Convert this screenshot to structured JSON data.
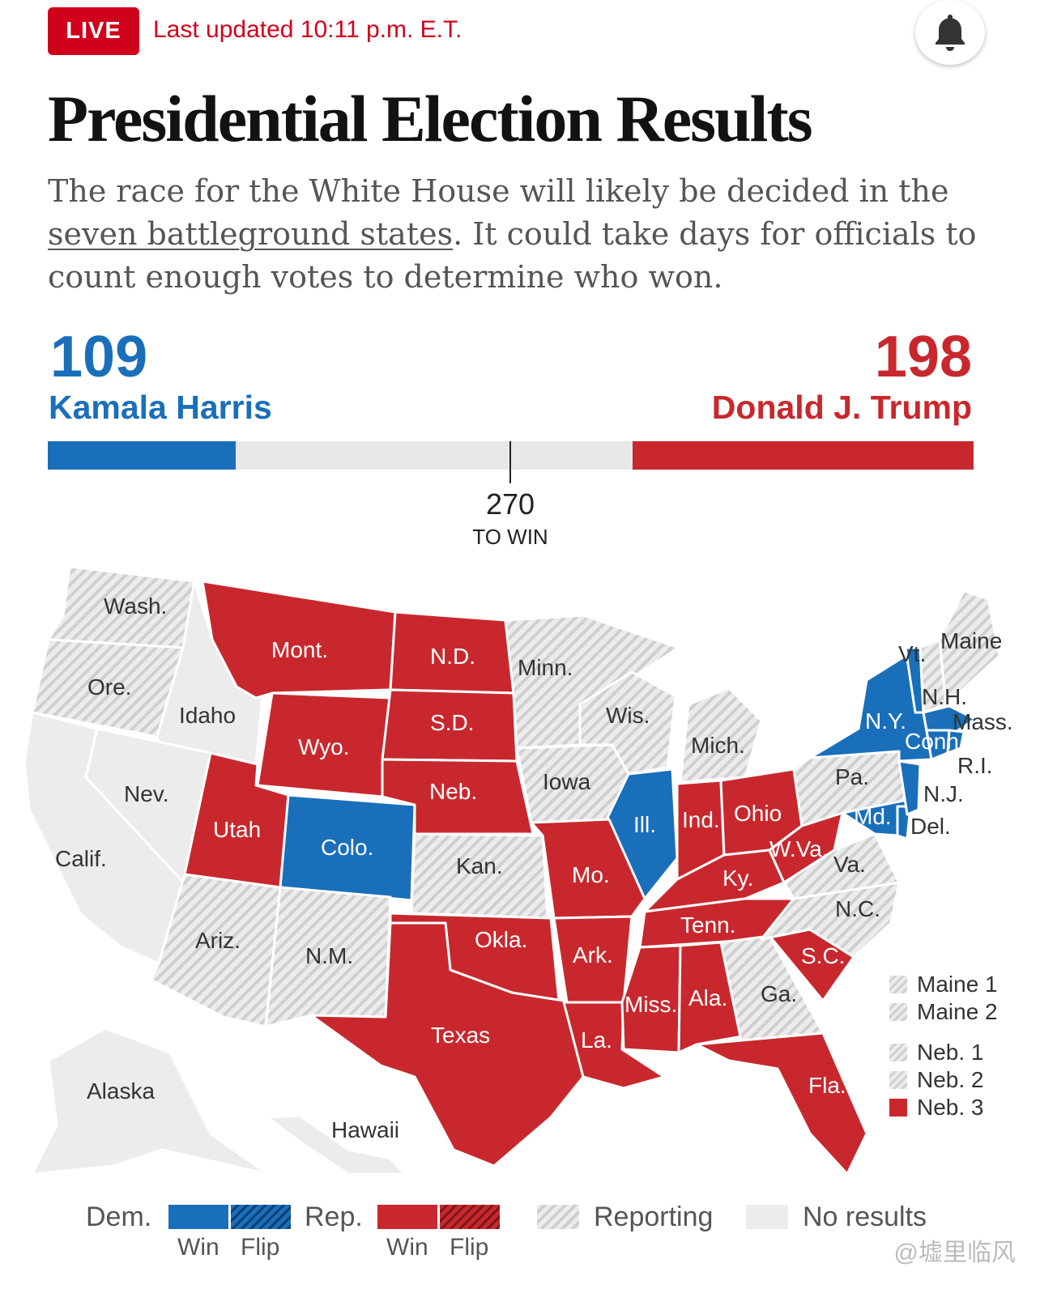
{
  "header": {
    "live_label": "LIVE",
    "updated_text": "Last updated 10:11 p.m. E.T.",
    "bell_icon": "bell-icon"
  },
  "title": "Presidential Election Results",
  "intro": {
    "before": "The race for the White House will likely be decided in the ",
    "link": "seven battleground states",
    "after": ". It could take days for officials to count enough votes to determine who won."
  },
  "scoreboard": {
    "dem": {
      "votes": "109",
      "name": "Kamala Harris",
      "color": "#1a6fba"
    },
    "rep": {
      "votes": "198",
      "name": "Donald J. Trump",
      "color": "#c8282d"
    },
    "threshold": "270",
    "threshold_label": "TO WIN",
    "total": 538
  },
  "map": {
    "colors": {
      "dem": "#1a6fba",
      "rep": "#c8282d",
      "reporting": "#d6d6d6",
      "none": "#ececec"
    },
    "states": {
      "Wash.": "reporting",
      "Ore.": "reporting",
      "Calif.": "none",
      "Idaho": "none",
      "Nev.": "none",
      "Mont.": "rep",
      "Wyo.": "rep",
      "Utah": "rep",
      "Colo.": "dem",
      "Ariz.": "reporting",
      "N.M.": "reporting",
      "N.D.": "rep",
      "S.D.": "rep",
      "Neb.": "rep",
      "Kan.": "reporting",
      "Okla.": "rep",
      "Texas": "rep",
      "Minn.": "reporting",
      "Iowa": "reporting",
      "Mo.": "rep",
      "Ark.": "rep",
      "La.": "rep",
      "Wis.": "reporting",
      "Ill.": "dem",
      "Mich.": "reporting",
      "Ind.": "rep",
      "Ohio": "rep",
      "Ky.": "rep",
      "Tenn.": "rep",
      "Miss.": "rep",
      "Ala.": "rep",
      "Ga.": "reporting",
      "Fla.": "rep",
      "S.C.": "rep",
      "N.C.": "reporting",
      "Va.": "reporting",
      "W.Va.": "rep",
      "Pa.": "reporting",
      "N.Y.": "dem",
      "Vt.": "dem",
      "N.H.": "reporting",
      "Maine": "reporting",
      "Mass.": "dem",
      "Conn.": "dem",
      "R.I.": "dem",
      "N.J.": "dem",
      "Del.": "dem",
      "Md.": "dem",
      "Alaska": "none",
      "Hawaii": "none"
    },
    "districts": [
      {
        "label": "Maine 1",
        "status": "reporting"
      },
      {
        "label": "Maine 2",
        "status": "reporting"
      },
      {
        "label": "Neb. 1",
        "status": "reporting"
      },
      {
        "label": "Neb. 2",
        "status": "reporting"
      },
      {
        "label": "Neb. 3",
        "status": "rep"
      }
    ]
  },
  "legend": {
    "dem": "Dem.",
    "rep": "Rep.",
    "win": "Win",
    "flip": "Flip",
    "reporting": "Reporting",
    "no_results": "No results"
  },
  "watermark": "@墟里临风"
}
